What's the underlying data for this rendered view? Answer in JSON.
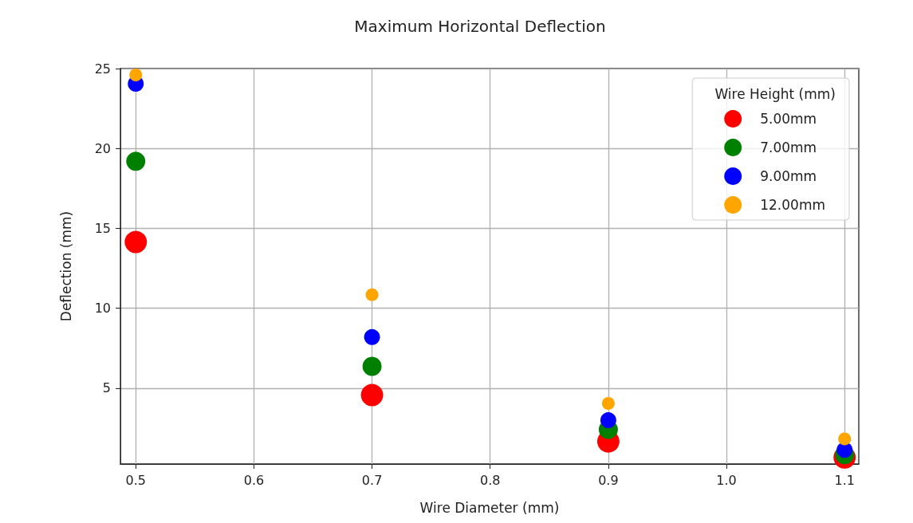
{
  "chart_data": {
    "type": "scatter",
    "title": "Maximum Horizontal Deflection",
    "xlabel": "Wire Diameter (mm)",
    "ylabel": "Deflection (mm)",
    "legend_title": "Wire Height (mm)",
    "x": [
      0.5,
      0.7,
      0.9,
      1.1
    ],
    "series": [
      {
        "name": "5.00mm",
        "color": "#ff0000",
        "values": [
          14.15,
          4.57,
          1.67,
          0.67
        ]
      },
      {
        "name": "7.00mm",
        "color": "#008000",
        "values": [
          19.2,
          6.37,
          2.42,
          0.84
        ]
      },
      {
        "name": "9.00mm",
        "color": "#0000ff",
        "values": [
          24.05,
          8.2,
          3.0,
          1.14
        ]
      },
      {
        "name": "12.00mm",
        "color": "#ffa500",
        "values": [
          24.6,
          10.85,
          4.05,
          1.83
        ]
      }
    ],
    "xlim": [
      0.487,
      1.112
    ],
    "xticks": [
      0.5,
      0.6,
      0.7,
      0.8,
      0.9,
      {
        "value": 1.0,
        "label": "1.0"
      },
      1.1
    ],
    "ylim": [
      0.26,
      25
    ],
    "yticks": [
      5,
      10,
      15,
      20,
      25
    ],
    "grid": true,
    "legend": "top right",
    "marker": "circle"
  }
}
